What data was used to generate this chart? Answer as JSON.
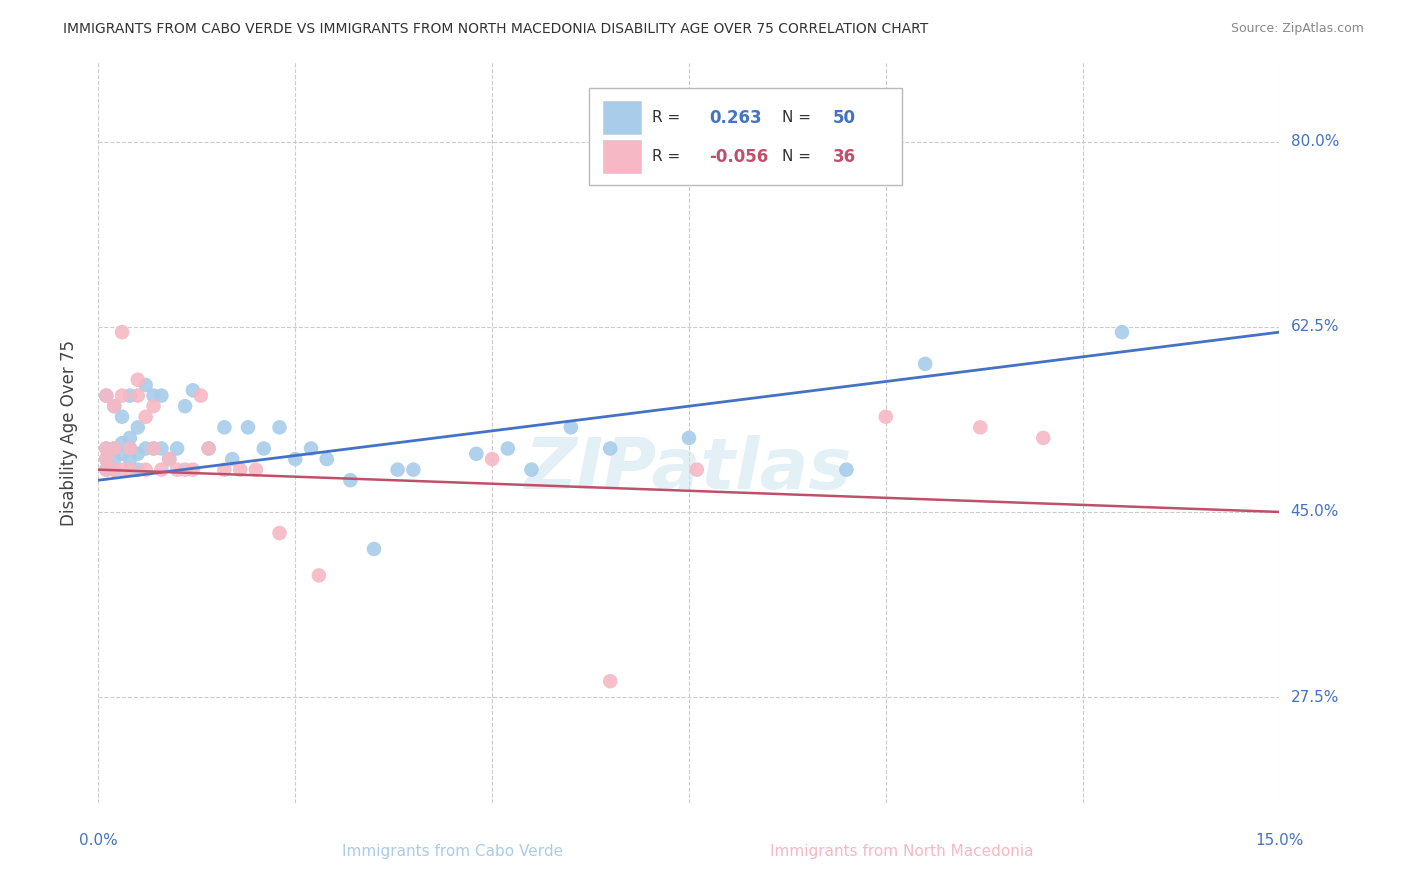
{
  "title": "IMMIGRANTS FROM CABO VERDE VS IMMIGRANTS FROM NORTH MACEDONIA DISABILITY AGE OVER 75 CORRELATION CHART",
  "source": "Source: ZipAtlas.com",
  "ylabel": "Disability Age Over 75",
  "y_ticks": [
    "80.0%",
    "62.5%",
    "45.0%",
    "27.5%"
  ],
  "y_tick_vals": [
    0.8,
    0.625,
    0.45,
    0.275
  ],
  "xmin": 0.0,
  "xmax": 0.15,
  "ymin": 0.175,
  "ymax": 0.875,
  "legend1_r": "0.263",
  "legend1_n": "50",
  "legend2_r": "-0.056",
  "legend2_n": "36",
  "blue_color": "#A8CCEA",
  "pink_color": "#F5B8C4",
  "blue_line_color": "#4472C4",
  "pink_line_color": "#C0506A",
  "watermark": "ZIPatlas",
  "cabo_verde_x": [
    0.001,
    0.001,
    0.001,
    0.001,
    0.002,
    0.002,
    0.002,
    0.002,
    0.003,
    0.003,
    0.003,
    0.004,
    0.004,
    0.004,
    0.004,
    0.005,
    0.005,
    0.005,
    0.006,
    0.006,
    0.007,
    0.007,
    0.008,
    0.008,
    0.009,
    0.01,
    0.011,
    0.012,
    0.014,
    0.016,
    0.017,
    0.019,
    0.021,
    0.023,
    0.025,
    0.027,
    0.029,
    0.032,
    0.035,
    0.038,
    0.04,
    0.048,
    0.052,
    0.055,
    0.06,
    0.065,
    0.075,
    0.095,
    0.105,
    0.13
  ],
  "cabo_verde_y": [
    0.5,
    0.51,
    0.49,
    0.56,
    0.5,
    0.51,
    0.55,
    0.49,
    0.505,
    0.515,
    0.54,
    0.5,
    0.51,
    0.52,
    0.56,
    0.505,
    0.53,
    0.49,
    0.51,
    0.57,
    0.51,
    0.56,
    0.51,
    0.56,
    0.5,
    0.51,
    0.55,
    0.565,
    0.51,
    0.53,
    0.5,
    0.53,
    0.51,
    0.53,
    0.5,
    0.51,
    0.5,
    0.48,
    0.415,
    0.49,
    0.49,
    0.505,
    0.51,
    0.49,
    0.53,
    0.51,
    0.52,
    0.49,
    0.59,
    0.62
  ],
  "north_mac_x": [
    0.001,
    0.001,
    0.001,
    0.001,
    0.002,
    0.002,
    0.002,
    0.003,
    0.003,
    0.003,
    0.004,
    0.004,
    0.005,
    0.005,
    0.006,
    0.006,
    0.007,
    0.007,
    0.008,
    0.009,
    0.01,
    0.011,
    0.012,
    0.013,
    0.014,
    0.016,
    0.018,
    0.02,
    0.023,
    0.028,
    0.05,
    0.065,
    0.076,
    0.1,
    0.112,
    0.12
  ],
  "north_mac_y": [
    0.5,
    0.51,
    0.49,
    0.56,
    0.51,
    0.55,
    0.49,
    0.56,
    0.62,
    0.49,
    0.51,
    0.49,
    0.575,
    0.56,
    0.54,
    0.49,
    0.55,
    0.51,
    0.49,
    0.5,
    0.49,
    0.49,
    0.49,
    0.56,
    0.51,
    0.49,
    0.49,
    0.49,
    0.43,
    0.39,
    0.5,
    0.29,
    0.49,
    0.54,
    0.53,
    0.52
  ],
  "blue_trend_x": [
    0.0,
    0.15
  ],
  "blue_trend_y": [
    0.48,
    0.62
  ],
  "pink_trend_x": [
    0.0,
    0.15
  ],
  "pink_trend_y": [
    0.49,
    0.45
  ]
}
